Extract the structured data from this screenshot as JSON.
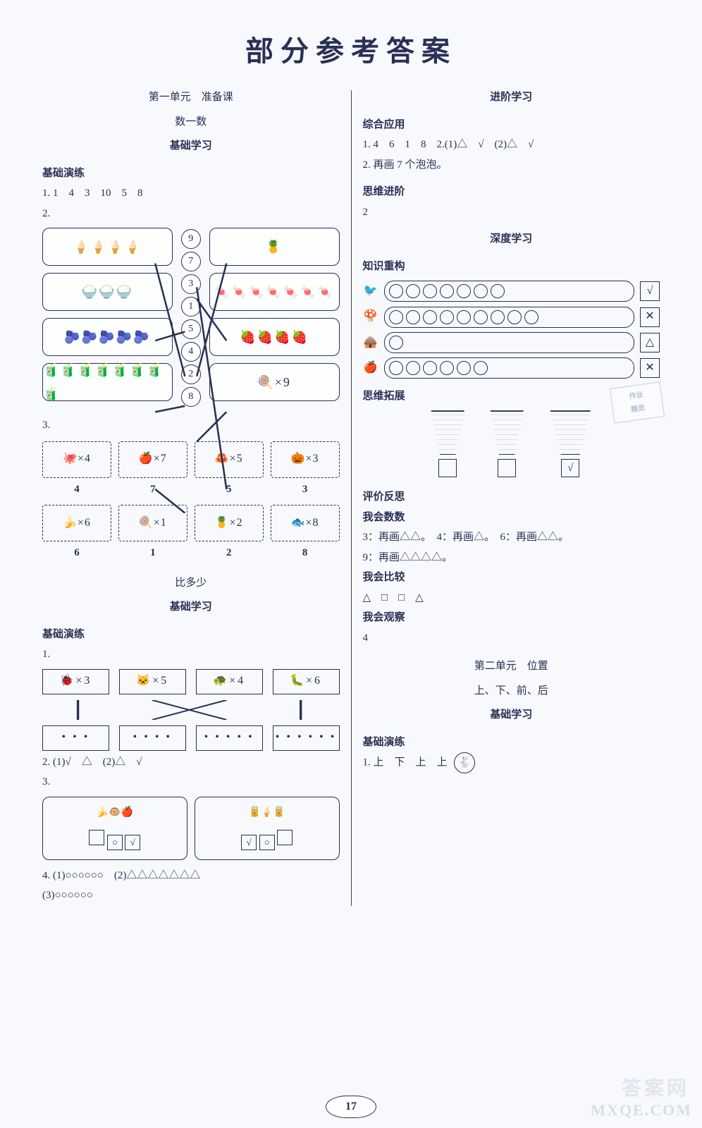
{
  "title": "部分参考答案",
  "page_number": "17",
  "watermark_main": "答案网",
  "watermark_sub": "MXQE.COM",
  "left": {
    "unit": "第一单元　准备课",
    "lesson1": "数一数",
    "sec_basic": "基础学习",
    "sec_practice": "基础演练",
    "q1": "1. 1　4　3　10　5　8",
    "q2_label": "2.",
    "q2_left_cards": [
      "🍦🍦🍦🍦",
      "🍚🍚🍚",
      "🫐🫐🫐🫐🫐",
      "🧃🧃🧃🧃🧃🧃🧃🧃"
    ],
    "q2_numbers": [
      "9",
      "7",
      "3",
      "1",
      "5",
      "4",
      "2",
      "8"
    ],
    "q2_right_cards": [
      "🍍",
      "🍬🍬🍬🍬🍬🍬🍬",
      "🍓🍓🍓🍓",
      "🍭×9"
    ],
    "q3_label": "3.",
    "q3_row1_icons": [
      "🐙×4",
      "🍎×7",
      "🦀×5",
      "🎃×3"
    ],
    "q3_row1_nums": [
      "4",
      "7",
      "5",
      "3"
    ],
    "q3_row2_icons": [
      "🍌×6",
      "🍭×1",
      "🍍×2",
      "🐟×8"
    ],
    "q3_row2_nums": [
      "6",
      "1",
      "2",
      "8"
    ],
    "lesson2": "比多少",
    "sec_basic2": "基础学习",
    "sec_practice2": "基础演练",
    "cmp1_label": "1.",
    "cmp1_top": [
      "🐞×3",
      "🐱×5",
      "🐢×4",
      "🐛×6"
    ],
    "cmp1_bottom_dots": [
      "• • •",
      "• • • •",
      "• • • • •",
      "• • • • • •"
    ],
    "cmp2": "2. (1)√　△　(2)△　√",
    "cmp3_label": "3.",
    "cmp3_left_icons": "🍌🐵🍎",
    "cmp3_left_marks": [
      "",
      "○",
      "√"
    ],
    "cmp3_right_icons": "🥫🍦🥫",
    "cmp3_right_marks": [
      "√",
      "○",
      ""
    ],
    "cmp4": "4. (1)○○○○○○　(2)△△△△△△△",
    "cmp4b": "(3)○○○○○○"
  },
  "right": {
    "sec_adv": "进阶学习",
    "sub_app": "综合应用",
    "app_line": "1. 4　6　1　8　2.(1)△　√　(2)△　√",
    "app_line2": "2. 再画 7 个泡泡。",
    "sub_think": "思维进阶",
    "think_ans": "2",
    "sec_deep": "深度学习",
    "sub_recon": "知识重构",
    "recon_rows": [
      {
        "icon": "🐦",
        "circles": 7,
        "mark": "√"
      },
      {
        "icon": "🍄",
        "circles": 9,
        "mark": "✕"
      },
      {
        "icon": "🛖",
        "circles": 1,
        "mark": "△"
      },
      {
        "icon": "🍎",
        "circles": 6,
        "mark": "✕"
      }
    ],
    "sub_expand": "思维拓展",
    "stamp_l1": "作业",
    "stamp_l2": "精灵",
    "cups_checked_index": 2,
    "sub_reflect": "评价反思",
    "reflect_count": "我会数数",
    "reflect_count_line": "3：再画△△。　4：再画△。　6：再画△△。",
    "reflect_count_line2": "9：再画△△△△。",
    "reflect_compare": "我会比较",
    "reflect_compare_shapes": "△　□　□　△",
    "reflect_observe": "我会观察",
    "observe_ans": "4",
    "unit2": "第二单元　位置",
    "unit2_lesson": "上、下、前、后",
    "unit2_basic": "基础学习",
    "unit2_practice": "基础演练",
    "unit2_q1": "1. 上　下　上　上",
    "unit2_icon": "🐇"
  }
}
